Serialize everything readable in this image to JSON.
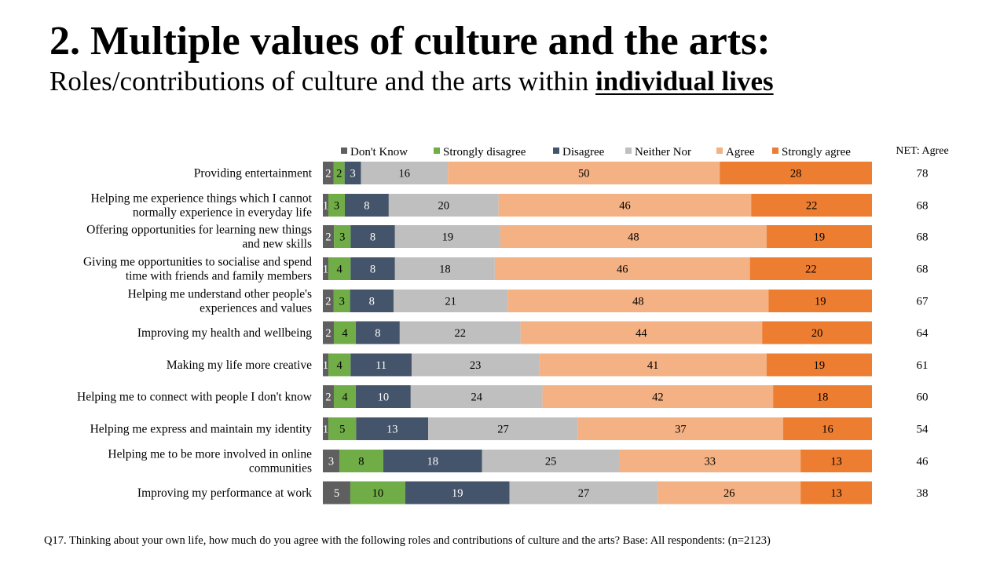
{
  "header": {
    "title": "2. Multiple values of culture and the arts:",
    "subtitle_prefix": "Roles/contributions of culture and the arts within ",
    "subtitle_emphasis": "individual lives"
  },
  "footnote": "Q17. Thinking about your own life, how much do you agree with the following roles and contributions of culture and the arts?  Base: All respondents: (n=2123)",
  "chart_data": {
    "type": "bar",
    "orientation": "horizontal",
    "stacked": true,
    "legend_position": "top",
    "net_label": "NET: Agree",
    "categories": [
      [
        "Providing entertainment"
      ],
      [
        "Helping me experience things which I cannot",
        "normally experience in everyday life"
      ],
      [
        "Offering opportunities for learning new things",
        "and new skills"
      ],
      [
        "Giving me opportunities to socialise and spend",
        "time with friends and family members"
      ],
      [
        "Helping me understand other people's",
        "experiences and values"
      ],
      [
        "Improving my health and wellbeing"
      ],
      [
        "Making my life more creative"
      ],
      [
        "Helping me to connect with people I don't know"
      ],
      [
        "Helping me express and maintain my identity"
      ],
      [
        "Helping me to be more involved in online",
        "communities"
      ],
      [
        "Improving my performance at work"
      ]
    ],
    "series": [
      {
        "name": "Don't Know",
        "color": "#5f5f5f",
        "label_color": "#ffffff",
        "values": [
          2,
          1,
          2,
          1,
          2,
          2,
          1,
          2,
          1,
          3,
          5
        ]
      },
      {
        "name": "Strongly disagree",
        "color": "#70ad47",
        "label_color": "#000000",
        "values": [
          2,
          3,
          3,
          4,
          3,
          4,
          4,
          4,
          5,
          8,
          10
        ]
      },
      {
        "name": "Disagree",
        "color": "#44546a",
        "label_color": "#ffffff",
        "values": [
          3,
          8,
          8,
          8,
          8,
          8,
          11,
          10,
          13,
          18,
          19
        ]
      },
      {
        "name": "Neither Nor",
        "color": "#bfbfbf",
        "label_color": "#000000",
        "values": [
          16,
          20,
          19,
          18,
          21,
          22,
          23,
          24,
          27,
          25,
          27
        ]
      },
      {
        "name": "Agree",
        "color": "#f4b183",
        "label_color": "#000000",
        "values": [
          50,
          46,
          48,
          46,
          48,
          44,
          41,
          42,
          37,
          33,
          26
        ]
      },
      {
        "name": "Strongly agree",
        "color": "#ed7d31",
        "label_color": "#000000",
        "values": [
          28,
          22,
          19,
          22,
          19,
          20,
          19,
          18,
          16,
          13,
          13
        ]
      }
    ],
    "net_agree": [
      78,
      68,
      68,
      68,
      67,
      64,
      61,
      60,
      54,
      46,
      38
    ]
  }
}
